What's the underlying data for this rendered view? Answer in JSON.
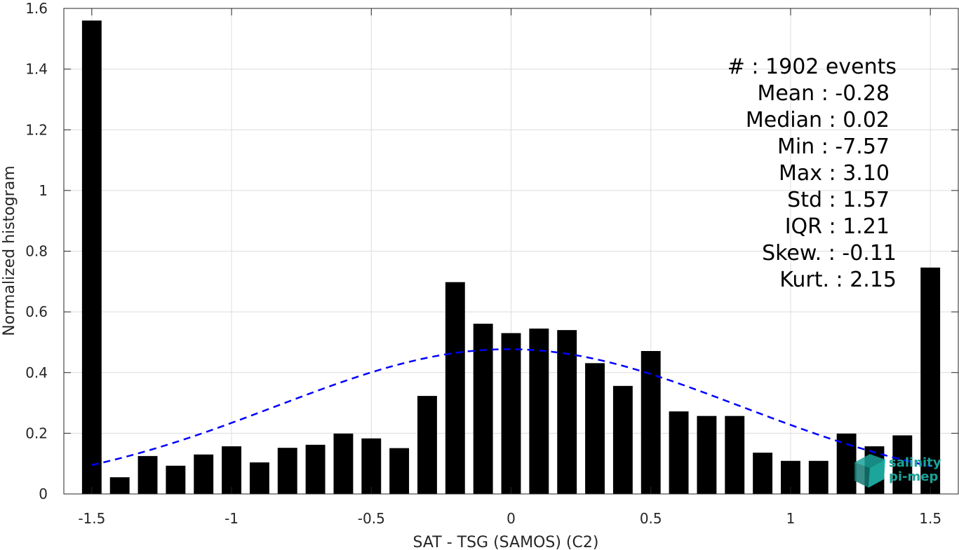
{
  "chart_data": {
    "type": "bar",
    "xlabel": "SAT - TSG (SAMOS) (C2)",
    "ylabel": "Normalized histogram",
    "xlim": [
      -1.6,
      1.6
    ],
    "ylim": [
      0,
      1.6
    ],
    "grid": true,
    "x_ticks": [
      -1.5,
      -1,
      -0.5,
      0,
      0.5,
      1,
      1.5
    ],
    "x_tick_labels": [
      "-1.5",
      "-1",
      "-0.5",
      "0",
      "0.5",
      "1",
      "1.5"
    ],
    "y_ticks": [
      0,
      0.2,
      0.4,
      0.6,
      0.8,
      1,
      1.2,
      1.4,
      1.6
    ],
    "y_tick_labels": [
      "0",
      "0.2",
      "0.4",
      "0.6",
      "0.8",
      "1",
      "1.2",
      "1.4",
      "1.6"
    ],
    "bar_width": 0.07,
    "bar_color": "#000000",
    "bars": [
      {
        "x": -1.5,
        "y": 1.56
      },
      {
        "x": -1.4,
        "y": 0.055
      },
      {
        "x": -1.3,
        "y": 0.125
      },
      {
        "x": -1.2,
        "y": 0.093
      },
      {
        "x": -1.1,
        "y": 0.13
      },
      {
        "x": -1.0,
        "y": 0.157
      },
      {
        "x": -0.9,
        "y": 0.104
      },
      {
        "x": -0.8,
        "y": 0.152
      },
      {
        "x": -0.7,
        "y": 0.162
      },
      {
        "x": -0.6,
        "y": 0.199
      },
      {
        "x": -0.5,
        "y": 0.183
      },
      {
        "x": -0.4,
        "y": 0.151
      },
      {
        "x": -0.3,
        "y": 0.323
      },
      {
        "x": -0.2,
        "y": 0.698
      },
      {
        "x": -0.1,
        "y": 0.561
      },
      {
        "x": 0.0,
        "y": 0.53
      },
      {
        "x": 0.1,
        "y": 0.545
      },
      {
        "x": 0.2,
        "y": 0.54
      },
      {
        "x": 0.3,
        "y": 0.431
      },
      {
        "x": 0.4,
        "y": 0.356
      },
      {
        "x": 0.5,
        "y": 0.471
      },
      {
        "x": 0.6,
        "y": 0.272
      },
      {
        "x": 0.7,
        "y": 0.257
      },
      {
        "x": 0.8,
        "y": 0.257
      },
      {
        "x": 0.9,
        "y": 0.136
      },
      {
        "x": 1.0,
        "y": 0.109
      },
      {
        "x": 1.1,
        "y": 0.109
      },
      {
        "x": 1.2,
        "y": 0.199
      },
      {
        "x": 1.3,
        "y": 0.157
      },
      {
        "x": 1.4,
        "y": 0.193
      },
      {
        "x": 1.5,
        "y": 0.746
      }
    ],
    "fit_curve": {
      "type": "gaussian",
      "mean": -0.01,
      "std": 0.83,
      "peak": 0.477,
      "x_range": [
        -1.5,
        1.5
      ],
      "color": "#0000ff",
      "style": "dashed"
    },
    "stats": [
      {
        "label": "#  : 1902 events"
      },
      {
        "label": "Mean : -0.28"
      },
      {
        "label": "Median : 0.02"
      },
      {
        "label": "Min : -7.57"
      },
      {
        "label": "Max : 3.10"
      },
      {
        "label": "Std : 1.57"
      },
      {
        "label": "IQR : 1.21"
      },
      {
        "label": "Skew. : -0.11"
      },
      {
        "label": "Kurt. : 2.15"
      }
    ],
    "logo": {
      "line1": "salinity",
      "line2": "pi-mep",
      "color": "#1aa39a"
    }
  }
}
